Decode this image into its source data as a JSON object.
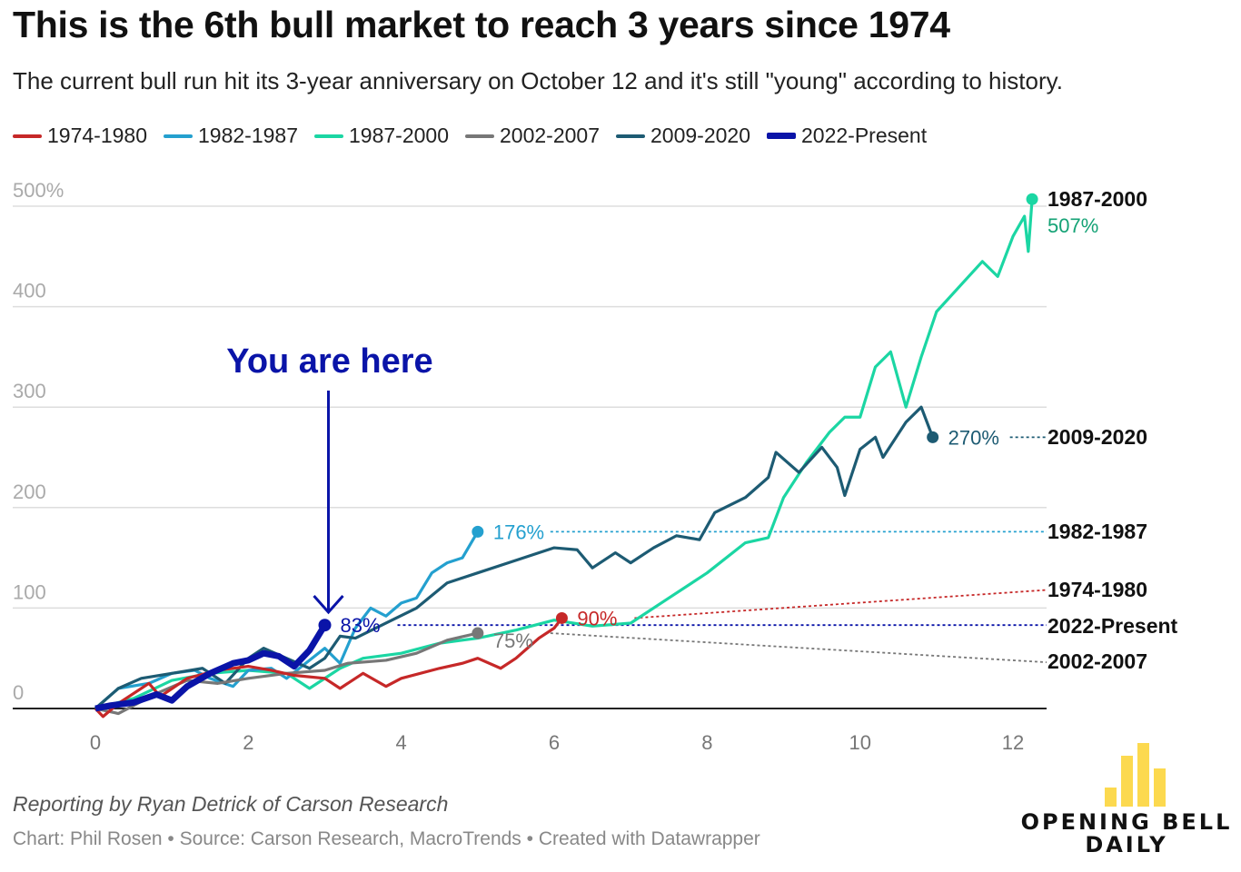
{
  "title": "This is the 6th bull market to reach 3 years since 1974",
  "subtitle": "The current bull run hit its 3-year anniversary on October 12 and it's still \"young\" according to history.",
  "note": "Reporting by Ryan Detrick of Carson Research",
  "credit": "Chart: Phil Rosen • Source: Carson Research, MacroTrends • Created with Datawrapper",
  "logo": {
    "line1": "OPENING BELL",
    "line2": "DAILY",
    "bar_color": "#fcd94f"
  },
  "chart_data": {
    "type": "line",
    "title": "This is the 6th bull market to reach 3 years since 1974",
    "xlabel": "",
    "ylabel": "",
    "xlim": [
      0,
      12.4
    ],
    "ylim": [
      0,
      500
    ],
    "x_ticks": [
      "0",
      "2",
      "4",
      "6",
      "8",
      "10",
      "12"
    ],
    "x_tick_values": [
      0,
      2,
      4,
      6,
      8,
      10,
      12
    ],
    "y_ticks": [
      "0",
      "100",
      "200",
      "300",
      "400",
      "500%"
    ],
    "y_tick_values": [
      0,
      100,
      200,
      300,
      400,
      500
    ],
    "grid": true,
    "legend": "top-left",
    "annotation": {
      "text": "You are here",
      "x": 3,
      "y": 83,
      "color": "#0a14a8"
    },
    "series": [
      {
        "name": "1974-1980",
        "color": "#c62828",
        "label": "90%",
        "end_label": "1974-1980",
        "leader_end": 118,
        "x": [
          0,
          0.1,
          0.3,
          0.7,
          0.85,
          1.2,
          1.6,
          2.0,
          2.3,
          2.6,
          3.0,
          3.2,
          3.5,
          3.8,
          4.0,
          4.5,
          4.8,
          5.0,
          5.3,
          5.5,
          5.8,
          6.0,
          6.1
        ],
        "y": [
          0,
          -8,
          5,
          25,
          12,
          30,
          38,
          42,
          38,
          33,
          30,
          20,
          35,
          22,
          30,
          40,
          45,
          50,
          40,
          50,
          70,
          80,
          90
        ]
      },
      {
        "name": "1982-1987",
        "color": "#24a0cf",
        "label": "176%",
        "end_label": "1982-1987",
        "leader_end": 176,
        "x": [
          0,
          0.3,
          0.7,
          1.0,
          1.3,
          1.5,
          1.8,
          2.0,
          2.3,
          2.5,
          2.8,
          3.0,
          3.2,
          3.4,
          3.6,
          3.8,
          4.0,
          4.2,
          4.4,
          4.6,
          4.8,
          5.0
        ],
        "y": [
          0,
          20,
          25,
          35,
          38,
          30,
          22,
          38,
          40,
          30,
          48,
          60,
          45,
          80,
          100,
          92,
          105,
          110,
          135,
          145,
          150,
          176
        ]
      },
      {
        "name": "1987-2000",
        "color": "#1bd6a3",
        "label": "507%",
        "end_label": "1987-2000",
        "label_color": "#14a275",
        "x": [
          0,
          0.5,
          1.0,
          1.5,
          2.0,
          2.5,
          2.8,
          3.2,
          3.5,
          4.0,
          4.5,
          5.0,
          5.5,
          6.0,
          6.5,
          7.0,
          7.5,
          8.0,
          8.5,
          8.8,
          9.0,
          9.3,
          9.6,
          9.8,
          10.0,
          10.2,
          10.4,
          10.6,
          10.8,
          11.0,
          11.3,
          11.6,
          11.8,
          12.0,
          12.15,
          12.2,
          12.25
        ],
        "y": [
          0,
          10,
          28,
          35,
          38,
          35,
          20,
          40,
          50,
          55,
          65,
          70,
          78,
          88,
          82,
          85,
          110,
          135,
          165,
          170,
          210,
          245,
          275,
          290,
          290,
          340,
          355,
          300,
          350,
          395,
          420,
          445,
          430,
          470,
          490,
          455,
          507
        ]
      },
      {
        "name": "2002-2007",
        "color": "#777777",
        "label": "75%",
        "end_label": "2002-2007",
        "leader_end": 46,
        "x": [
          0,
          0.3,
          0.8,
          1.2,
          1.6,
          2.0,
          2.5,
          3.0,
          3.3,
          3.8,
          4.2,
          4.6,
          5.0
        ],
        "y": [
          0,
          -5,
          15,
          28,
          25,
          30,
          35,
          38,
          45,
          48,
          55,
          68,
          75
        ]
      },
      {
        "name": "2009-2020",
        "color": "#1d5b73",
        "label": "270%",
        "end_label": "2009-2020",
        "leader_end": 270,
        "x": [
          0,
          0.3,
          0.6,
          1.0,
          1.4,
          1.7,
          2.0,
          2.2,
          2.5,
          2.8,
          3.0,
          3.2,
          3.4,
          3.8,
          4.2,
          4.6,
          5.0,
          5.4,
          6.0,
          6.3,
          6.5,
          6.8,
          7.0,
          7.3,
          7.6,
          7.9,
          8.1,
          8.5,
          8.8,
          8.9,
          9.2,
          9.5,
          9.7,
          9.8,
          10.0,
          10.2,
          10.3,
          10.6,
          10.8,
          10.95
        ],
        "y": [
          0,
          20,
          30,
          35,
          40,
          25,
          50,
          60,
          50,
          40,
          50,
          72,
          70,
          85,
          100,
          125,
          135,
          145,
          160,
          158,
          140,
          155,
          145,
          160,
          172,
          168,
          195,
          210,
          230,
          255,
          235,
          260,
          240,
          212,
          258,
          270,
          250,
          285,
          300,
          270
        ]
      },
      {
        "name": "2022-Present",
        "color": "#0a14a8",
        "label": "83%",
        "end_label": "2022-Present",
        "leader_end": 83,
        "x": [
          0,
          0.2,
          0.5,
          0.8,
          1.0,
          1.2,
          1.5,
          1.8,
          2.0,
          2.2,
          2.4,
          2.6,
          2.8,
          3.0
        ],
        "y": [
          0,
          3,
          6,
          14,
          8,
          22,
          35,
          45,
          48,
          55,
          52,
          42,
          58,
          83
        ]
      }
    ]
  }
}
